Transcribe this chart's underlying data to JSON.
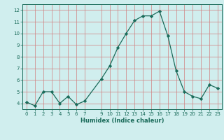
{
  "x": [
    0,
    1,
    2,
    3,
    4,
    5,
    6,
    7,
    9,
    10,
    11,
    12,
    13,
    14,
    15,
    16,
    17,
    18,
    19,
    20,
    21,
    22,
    23
  ],
  "y": [
    4.1,
    3.8,
    5.0,
    5.0,
    4.0,
    4.6,
    3.9,
    4.2,
    6.1,
    7.2,
    8.8,
    10.0,
    11.1,
    11.5,
    11.5,
    11.9,
    9.8,
    6.8,
    5.0,
    4.6,
    4.4,
    5.6,
    5.3
  ],
  "xticks": [
    0,
    1,
    2,
    3,
    4,
    5,
    6,
    7,
    9,
    10,
    11,
    12,
    13,
    14,
    15,
    16,
    17,
    18,
    19,
    20,
    21,
    22,
    23
  ],
  "yticks": [
    4,
    5,
    6,
    7,
    8,
    9,
    10,
    11,
    12
  ],
  "ylim": [
    3.5,
    12.5
  ],
  "xlim": [
    -0.5,
    23.5
  ],
  "xlabel": "Humidex (Indice chaleur)",
  "line_color": "#1a6b5a",
  "marker": "D",
  "marker_size": 2.2,
  "bg_color": "#d0eeee",
  "grid_color": "#d08080",
  "tick_fontsize": 5.0,
  "xlabel_fontsize": 6.0
}
